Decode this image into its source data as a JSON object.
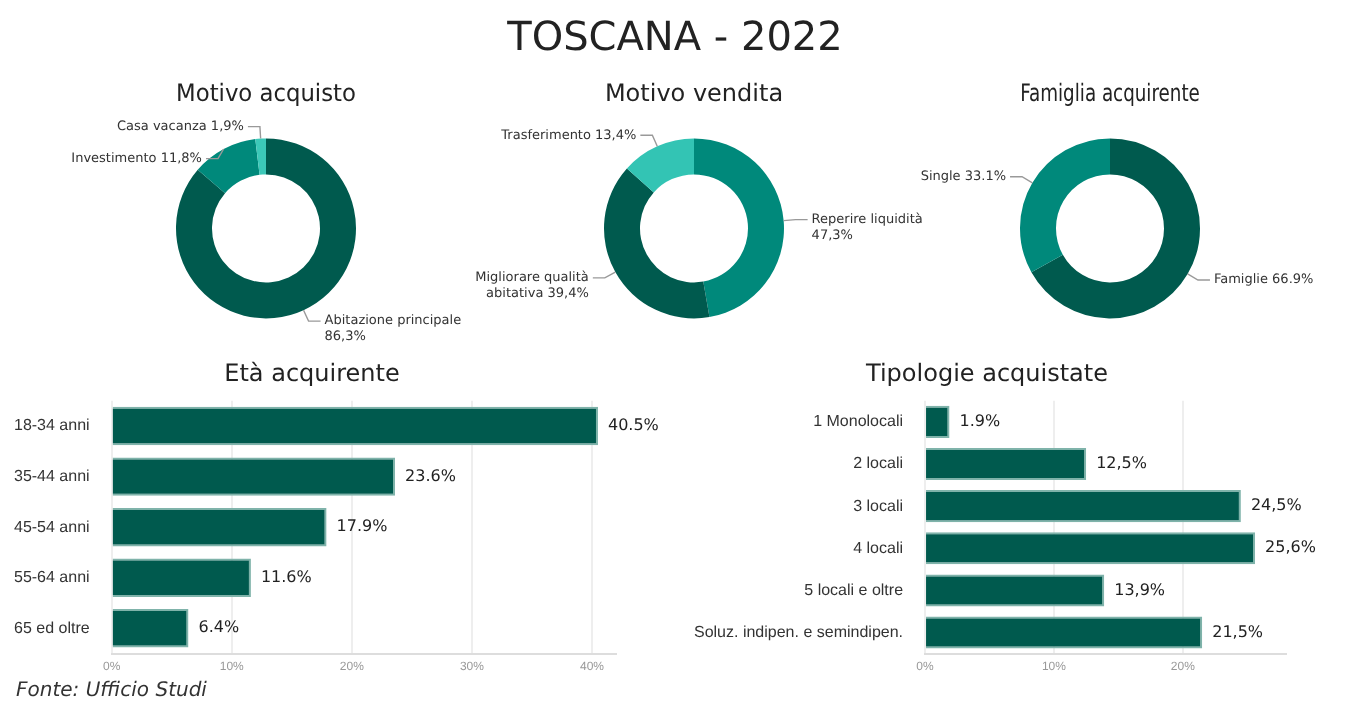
{
  "chart_data": [
    {
      "type": "other",
      "title": "TOSCANA - 2022",
      "annotations": [
        "Fonte: Ufficio Studi"
      ]
    },
    {
      "type": "donut",
      "title": "Motivo acquisto",
      "categories": [
        "Abitazione principale",
        "Investimento",
        "Casa vacanza"
      ],
      "values": [
        86.3,
        11.8,
        1.9
      ],
      "colors": [
        "#005a4e",
        "#00897b",
        "#3cc8b8"
      ],
      "value_labels": [
        "86,3%",
        "11,8%",
        "1,9%"
      ]
    },
    {
      "type": "donut",
      "title": "Motivo vendita",
      "categories": [
        "Reperire liquidità",
        "Migliorare qualità abitativa",
        "Trasferimento"
      ],
      "values": [
        47.3,
        39.4,
        13.4
      ],
      "colors": [
        "#00897b",
        "#005a4e",
        "#33c4b4"
      ],
      "value_labels": [
        "47,3%",
        "39,4%",
        "13,4%"
      ]
    },
    {
      "type": "donut",
      "title": "Famiglia acquirente",
      "categories": [
        "Famiglie",
        "Single"
      ],
      "values": [
        66.9,
        33.1
      ],
      "colors": [
        "#005a4e",
        "#00897b"
      ],
      "value_labels": [
        "66.9%",
        "33.1%"
      ]
    },
    {
      "type": "bar",
      "orientation": "horizontal",
      "title": "Età acquirente",
      "categories": [
        "18-34 anni",
        "35-44 anni",
        "45-54 anni",
        "55-64 anni",
        "65 ed oltre"
      ],
      "values": [
        40.5,
        23.6,
        17.9,
        11.6,
        6.4
      ],
      "color": "#005a4e",
      "value_labels": [
        "40.5%",
        "23.6%",
        "17.9%",
        "11.6%",
        "6.4%"
      ],
      "xlim": [
        0,
        42
      ],
      "xticks": [
        {
          "value": 0,
          "label": "0%"
        },
        {
          "value": 10,
          "label": "10%"
        },
        {
          "value": 20,
          "label": "20%"
        },
        {
          "value": 30,
          "label": "30%"
        },
        {
          "value": 40,
          "label": "40%"
        }
      ],
      "grid": "x"
    },
    {
      "type": "bar",
      "orientation": "horizontal",
      "title": "Tipologie acquistate",
      "categories": [
        "1 Monolocali",
        "2 locali",
        "3 locali",
        "4 locali",
        "5 locali e oltre",
        "Soluz. indipen. e semindipen."
      ],
      "values": [
        1.9,
        12.5,
        24.5,
        25.6,
        13.9,
        21.5
      ],
      "color": "#005a4e",
      "value_labels": [
        "1.9%",
        "12,5%",
        "24,5%",
        "25,6%",
        "13,9%",
        "21,5%"
      ],
      "xlim": [
        0,
        28
      ],
      "xticks": [
        {
          "value": 0,
          "label": "0%"
        },
        {
          "value": 10,
          "label": "10%"
        },
        {
          "value": 20,
          "label": "20%"
        }
      ],
      "grid": "x"
    }
  ]
}
